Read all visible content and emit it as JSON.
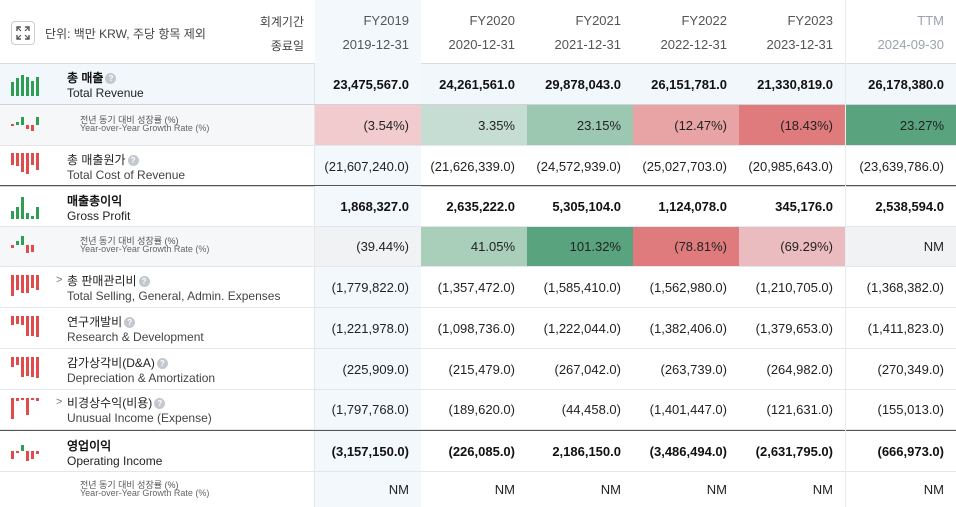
{
  "header": {
    "unit_label": "단위: 백만 KRW, 주당 항목 제외",
    "period_label": "회계기간",
    "end_date_label": "종료일",
    "columns": [
      {
        "fy": "FY2019",
        "date": "2019-12-31"
      },
      {
        "fy": "FY2020",
        "date": "2020-12-31"
      },
      {
        "fy": "FY2021",
        "date": "2021-12-31"
      },
      {
        "fy": "FY2022",
        "date": "2022-12-31"
      },
      {
        "fy": "FY2023",
        "date": "2023-12-31"
      },
      {
        "fy": "TTM",
        "date": "2024-09-30"
      }
    ]
  },
  "colors": {
    "bar_green": "#2f9e55",
    "bar_red": "#e04b4b",
    "growth_neg_light": "#f1cbcd",
    "growth_neg_mid": "#e8a3a4",
    "growth_neg_strong": "#df7b7c",
    "growth_pos_light": "#c5ddd2",
    "growth_pos_mid": "#9cc8b2",
    "growth_pos_strong": "#5aa37f"
  },
  "rows": {
    "total_revenue": {
      "ko": "총 매출",
      "en": "Total Revenue",
      "values": [
        "23,475,567.0",
        "24,261,561.0",
        "29,878,043.0",
        "26,151,781.0",
        "21,330,819.0",
        "26,178,380.0"
      ]
    },
    "revenue_growth": {
      "ko": "전년 동기 대비 성장률 (%)",
      "en": "Year-over-Year Growth Rate (%)",
      "values": [
        "(3.54%)",
        "3.35%",
        "23.15%",
        "(12.47%)",
        "(18.43%)",
        "23.27%"
      ],
      "shades": [
        "#f1cbcd",
        "#c5ddd2",
        "#9cc8b2",
        "#e8a3a4",
        "#df7b7c",
        "#5aa37f"
      ]
    },
    "cost_of_revenue": {
      "ko": "총 매출원가",
      "en": "Total Cost of Revenue",
      "values": [
        "(21,607,240.0)",
        "(21,626,339.0)",
        "(24,572,939.0)",
        "(25,027,703.0)",
        "(20,985,643.0)",
        "(23,639,786.0)"
      ]
    },
    "gross_profit": {
      "ko": "매출총이익",
      "en": "Gross Profit",
      "values": [
        "1,868,327.0",
        "2,635,222.0",
        "5,305,104.0",
        "1,124,078.0",
        "345,176.0",
        "2,538,594.0"
      ]
    },
    "gross_growth": {
      "ko": "전년 동기 대비 성장률 (%)",
      "en": "Year-over-Year Growth Rate (%)",
      "values": [
        "(39.44%)",
        "41.05%",
        "101.32%",
        "(78.81%)",
        "(69.29%)",
        "NM"
      ],
      "shades": [
        "#f1f2f4",
        "#a9cfbb",
        "#5aa37f",
        "#df7b7c",
        "#ebbcbf",
        "#f1f2f4"
      ]
    },
    "sga": {
      "ko": "총 판매관리비",
      "en": "Total Selling, General, Admin. Expenses",
      "values": [
        "(1,779,822.0)",
        "(1,357,472.0)",
        "(1,585,410.0)",
        "(1,562,980.0)",
        "(1,210,705.0)",
        "(1,368,382.0)"
      ]
    },
    "rnd": {
      "ko": "연구개발비",
      "en": "Research & Development",
      "values": [
        "(1,221,978.0)",
        "(1,098,736.0)",
        "(1,222,044.0)",
        "(1,382,406.0)",
        "(1,379,653.0)",
        "(1,411,823.0)"
      ]
    },
    "da": {
      "ko": "감가상각비(D&A)",
      "en": "Depreciation & Amortization",
      "values": [
        "(225,909.0)",
        "(215,479.0)",
        "(267,042.0)",
        "(263,739.0)",
        "(264,982.0)",
        "(270,349.0)"
      ]
    },
    "unusual": {
      "ko": "비경상수익(비용)",
      "en": "Unusual Income (Expense)",
      "values": [
        "(1,797,768.0)",
        "(189,620.0)",
        "(44,458.0)",
        "(1,401,447.0)",
        "(121,631.0)",
        "(155,013.0)"
      ]
    },
    "operating_income": {
      "ko": "영업이익",
      "en": "Operating Income",
      "values": [
        "(3,157,150.0)",
        "(226,085.0)",
        "2,186,150.0",
        "(3,486,494.0)",
        "(2,631,795.0)",
        "(666,973.0)"
      ]
    },
    "op_growth": {
      "ko": "전년 동기 대비 성장률 (%)",
      "en": "Year-over-Year Growth Rate (%)",
      "values": [
        "NM",
        "NM",
        "NM",
        "NM",
        "NM",
        "NM"
      ]
    }
  }
}
